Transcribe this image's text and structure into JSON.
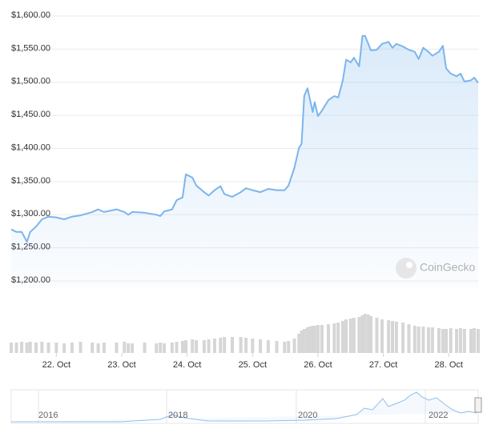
{
  "chart_data": {
    "type": "area",
    "xlim": [
      21.31,
      28.45
    ],
    "xticks": [
      {
        "value": 22,
        "label": "22. Oct"
      },
      {
        "value": 23,
        "label": "23. Oct"
      },
      {
        "value": 24,
        "label": "24. Oct"
      },
      {
        "value": 25,
        "label": "25. Oct"
      },
      {
        "value": 26,
        "label": "26. Oct"
      },
      {
        "value": 27,
        "label": "27. Oct"
      },
      {
        "value": 28,
        "label": "28. Oct"
      }
    ],
    "ylim": [
      1200,
      1600
    ],
    "yticks": [
      {
        "value": 1200,
        "label": "$1,200.00"
      },
      {
        "value": 1250,
        "label": "$1,250.00"
      },
      {
        "value": 1300,
        "label": "$1,300.00"
      },
      {
        "value": 1350,
        "label": "$1,350.00"
      },
      {
        "value": 1400,
        "label": "$1,400.00"
      },
      {
        "value": 1450,
        "label": "$1,450.00"
      },
      {
        "value": 1500,
        "label": "$1,500.00"
      },
      {
        "value": 1550,
        "label": "$1,550.00"
      },
      {
        "value": 1600,
        "label": "$1,600.00"
      }
    ],
    "grid": true,
    "color": "#7cb5ec",
    "volume_color": "#d6d6d6",
    "watermark": "CoinGecko",
    "navigator_labels": [
      "2016",
      "2018",
      "2020",
      "2022"
    ],
    "x": [
      21.31,
      21.39,
      21.47,
      21.55,
      21.6,
      21.69,
      21.78,
      21.88,
      22.0,
      22.12,
      22.24,
      22.37,
      22.55,
      22.64,
      22.73,
      22.92,
      23.04,
      23.1,
      23.16,
      23.35,
      23.53,
      23.59,
      23.65,
      23.77,
      23.84,
      23.93,
      23.98,
      24.08,
      24.14,
      24.26,
      24.33,
      24.42,
      24.51,
      24.57,
      24.69,
      24.82,
      24.9,
      25.0,
      25.12,
      25.24,
      25.37,
      25.49,
      25.55,
      25.64,
      25.71,
      25.75,
      25.79,
      25.84,
      25.88,
      25.92,
      25.95,
      26.0,
      26.06,
      26.16,
      26.25,
      26.31,
      26.38,
      26.43,
      26.5,
      26.55,
      26.63,
      26.68,
      26.72,
      26.77,
      26.81,
      26.9,
      26.98,
      27.08,
      27.14,
      27.2,
      27.3,
      27.39,
      27.48,
      27.54,
      27.61,
      27.69,
      27.75,
      27.85,
      27.91,
      27.96,
      28.03,
      28.12,
      28.18,
      28.24,
      28.34,
      28.39,
      28.45
    ],
    "values": [
      1278,
      1274,
      1274,
      1259,
      1274,
      1282,
      1293,
      1297,
      1296,
      1293,
      1297,
      1299,
      1304,
      1308,
      1304,
      1308,
      1304,
      1300,
      1304,
      1303,
      1300,
      1298,
      1305,
      1308,
      1322,
      1326,
      1361,
      1356,
      1344,
      1334,
      1329,
      1337,
      1343,
      1331,
      1327,
      1334,
      1340,
      1337,
      1334,
      1339,
      1337,
      1337,
      1344,
      1371,
      1401,
      1407,
      1479,
      1491,
      1473,
      1455,
      1470,
      1449,
      1457,
      1473,
      1479,
      1477,
      1503,
      1534,
      1530,
      1537,
      1524,
      1570,
      1570,
      1558,
      1548,
      1549,
      1558,
      1561,
      1552,
      1558,
      1554,
      1549,
      1546,
      1535,
      1552,
      1546,
      1540,
      1546,
      1555,
      1521,
      1513,
      1509,
      1513,
      1501,
      1503,
      1507,
      1499
    ],
    "volume": [
      13,
      13,
      14,
      13,
      14,
      13,
      14,
      13,
      13,
      12,
      13,
      14,
      13,
      12,
      13,
      13,
      14,
      12,
      12,
      13,
      12,
      13,
      12,
      13,
      14,
      15,
      16,
      17,
      16,
      16,
      17,
      18,
      19,
      20,
      20,
      20,
      19,
      18,
      17,
      16,
      15,
      14,
      15,
      18,
      24,
      28,
      30,
      32,
      33,
      34,
      34,
      35,
      35,
      36,
      37,
      38,
      40,
      42,
      43,
      44,
      45,
      47,
      49,
      48,
      46,
      44,
      42,
      41,
      40,
      39,
      38,
      36,
      34,
      33,
      33,
      32,
      32,
      31,
      30,
      30,
      31,
      30,
      31,
      30,
      30,
      31,
      30
    ]
  }
}
